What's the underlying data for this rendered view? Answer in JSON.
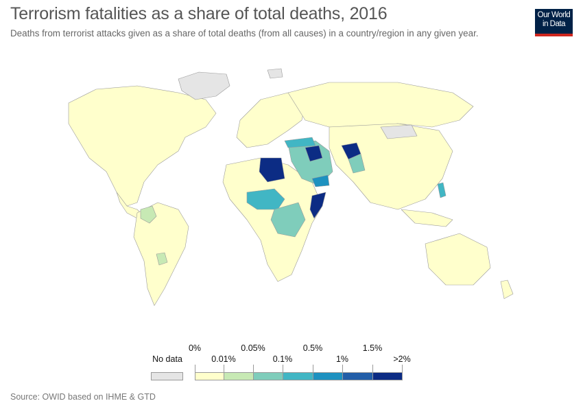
{
  "header": {
    "title": "Terrorism fatalities as a share of total deaths, 2016",
    "subtitle": "Deaths from terrorist attacks given as a share of total deaths (from all causes) in a country/region in any given year."
  },
  "logo": {
    "line1": "Our World",
    "line2": "in Data",
    "bg": "#002147",
    "accent": "#ce261e"
  },
  "legend": {
    "no_data_label": "No data",
    "no_data_color": "#e5e5e5",
    "bins": [
      {
        "color": "#ffffcc",
        "upper": "0.01%"
      },
      {
        "color": "#c7e9b4",
        "upper": "0.05%"
      },
      {
        "color": "#7fcdbb",
        "upper": "0.1%"
      },
      {
        "color": "#41b6c4",
        "upper": "0.5%"
      },
      {
        "color": "#1d91c0",
        "upper": "1%"
      },
      {
        "color": "#225ea8",
        "upper": "1.5%"
      },
      {
        "color": "#0c2c84",
        "upper": ">2%"
      }
    ],
    "ticks": [
      "0%",
      "0.01%",
      "0.05%",
      "0.1%",
      "0.5%",
      "1%",
      "1.5%",
      ">2%"
    ]
  },
  "map": {
    "land_default": "#ffffcc",
    "border_color": "#999999",
    "regions": [
      {
        "name": "North America",
        "level": 0
      },
      {
        "name": "Greenland",
        "level": -1
      },
      {
        "name": "Colombia",
        "level": 1
      },
      {
        "name": "Paraguay",
        "level": 1
      },
      {
        "name": "Libya",
        "level": 6
      },
      {
        "name": "Iraq",
        "level": 6
      },
      {
        "name": "Afghanistan",
        "level": 6
      },
      {
        "name": "Somalia",
        "level": 6
      },
      {
        "name": "Yemen",
        "level": 4
      },
      {
        "name": "Turkey",
        "level": 4
      },
      {
        "name": "Nigeria",
        "level": 4
      },
      {
        "name": "Philippines",
        "level": 3
      },
      {
        "name": "Pakistan",
        "level": 2
      },
      {
        "name": "Mongolia",
        "level": -1
      }
    ]
  },
  "footer": {
    "source": "Source: OWID based on IHME & GTD"
  }
}
